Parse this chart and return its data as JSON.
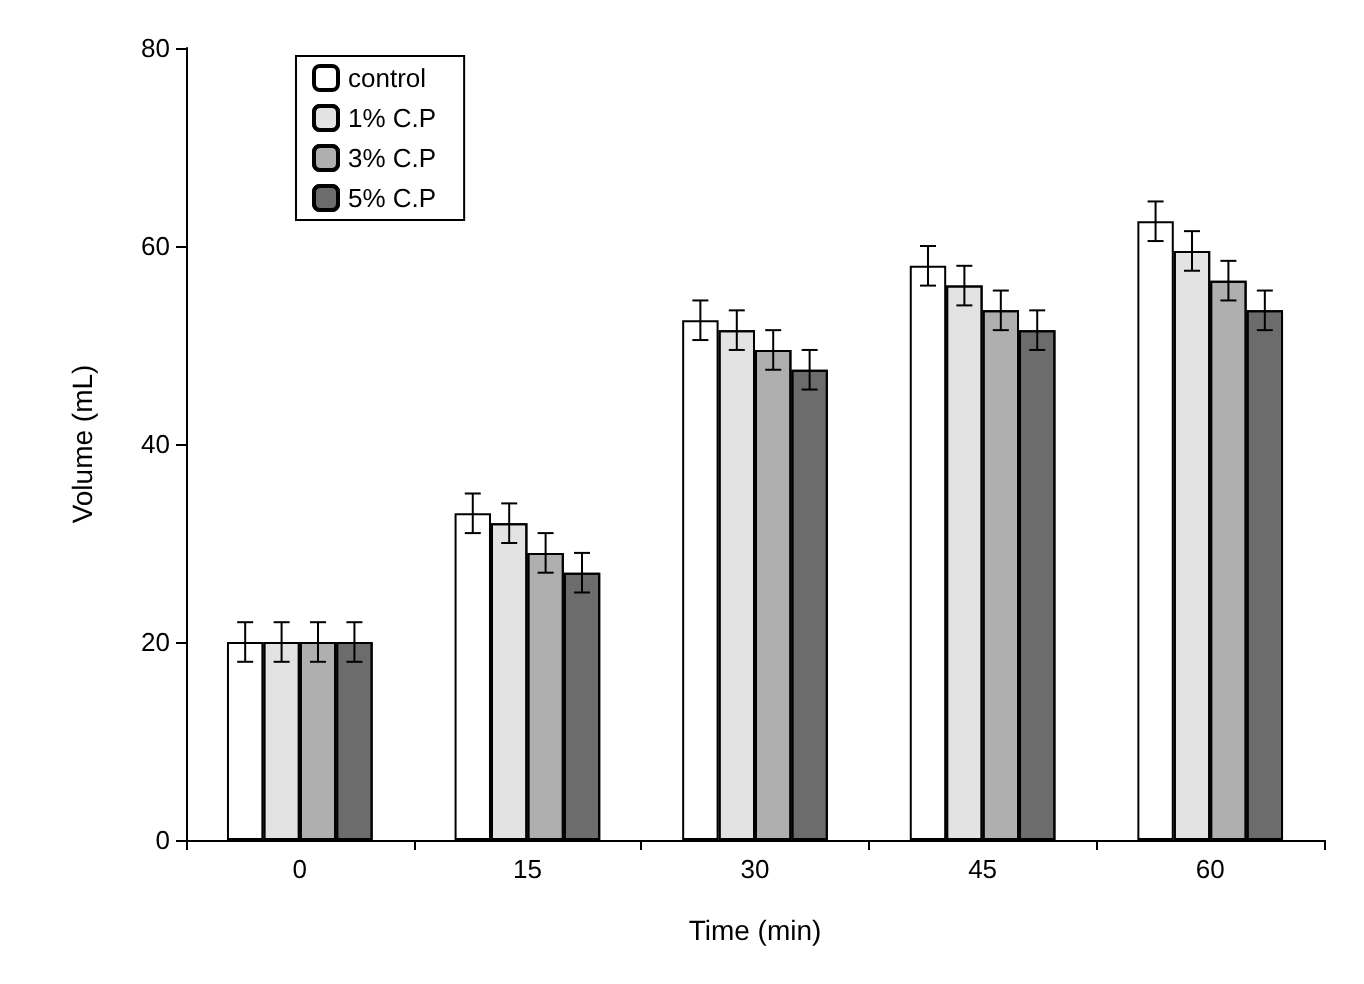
{
  "chart_data": {
    "type": "bar",
    "xlabel": "Time (min)",
    "ylabel": "Volume (mL)",
    "categories": [
      "0",
      "15",
      "30",
      "45",
      "60"
    ],
    "series": [
      {
        "name": "control",
        "color": "#ffffff",
        "values": [
          20,
          33,
          52.5,
          58,
          62.5
        ],
        "errors": [
          2,
          2,
          2,
          2,
          2
        ]
      },
      {
        "name": "1% C.P",
        "color": "#f2f2f2",
        "values": [
          20,
          32,
          51.5,
          56,
          59.5
        ],
        "errors": [
          2,
          2,
          2,
          2,
          2
        ]
      },
      {
        "name": "3% C.P",
        "color": "#d9d9d9",
        "values": [
          20,
          29,
          49.5,
          53.5,
          56.5
        ],
        "errors": [
          2,
          2,
          2,
          2,
          2
        ]
      },
      {
        "name": "5% C.P",
        "color": "#b3b3b3",
        "values": [
          20,
          27,
          47.5,
          51.5,
          53.5
        ],
        "errors": [
          2,
          2,
          2,
          2,
          2
        ]
      }
    ],
    "ylim": [
      0,
      80
    ],
    "yticks": [
      0,
      20,
      40,
      60,
      80
    ],
    "grid": false,
    "legend": "top left"
  }
}
